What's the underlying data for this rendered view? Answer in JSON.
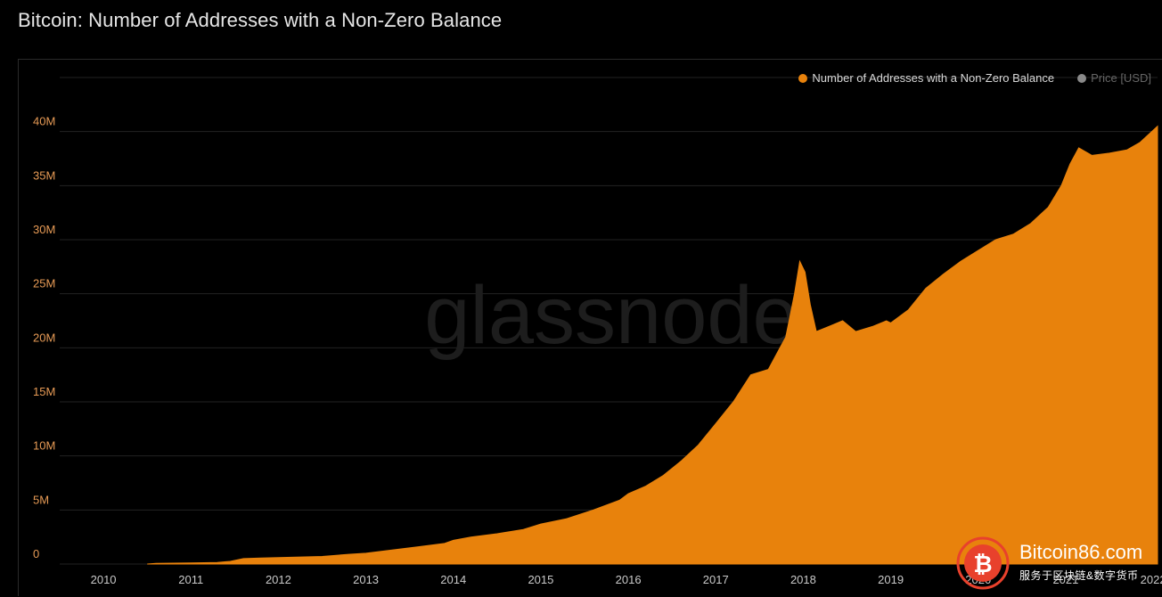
{
  "title": "Bitcoin: Number of Addresses with a Non-Zero Balance",
  "legend": [
    {
      "label": "Number of Addresses with a Non-Zero Balance",
      "color": "#e8820c"
    },
    {
      "label": "Price [USD]",
      "color": "#8a8a8a"
    }
  ],
  "watermark": {
    "text": "glassnode"
  },
  "overlay_logo": {
    "brand": "Bitcoin86.com",
    "subtitle": "服务于区块链&数字货币",
    "icon": "bitcoin-icon"
  },
  "colors": {
    "series": "#e8820c",
    "background": "#000000",
    "grid": "#222222",
    "axis_text": "#c9c9c9",
    "ytick_text": "#e69a55"
  },
  "chart_data": {
    "type": "area",
    "title": "Bitcoin: Number of Addresses with a Non-Zero Balance",
    "xlabel": "",
    "ylabel": "",
    "x_ticks": [
      "2010",
      "2011",
      "2012",
      "2013",
      "2014",
      "2015",
      "2016",
      "2017",
      "2018",
      "2019",
      "2020",
      "2021",
      "2022"
    ],
    "y_ticks": [
      {
        "value": 0,
        "label": "0"
      },
      {
        "value": 5000000,
        "label": "5M"
      },
      {
        "value": 10000000,
        "label": "10M"
      },
      {
        "value": 15000000,
        "label": "15M"
      },
      {
        "value": 20000000,
        "label": "20M"
      },
      {
        "value": 25000000,
        "label": "25M"
      },
      {
        "value": 30000000,
        "label": "30M"
      },
      {
        "value": 35000000,
        "label": "35M"
      },
      {
        "value": 40000000,
        "label": "40M"
      }
    ],
    "xlim": [
      2009.5,
      2022.05
    ],
    "ylim": [
      0,
      45000000
    ],
    "grid": true,
    "legend_position": "top-right",
    "series": [
      {
        "name": "Number of Addresses with a Non-Zero Balance",
        "color": "#e8820c",
        "points": [
          [
            2010.5,
            0
          ],
          [
            2010.6,
            60000
          ],
          [
            2011.0,
            100000
          ],
          [
            2011.3,
            150000
          ],
          [
            2011.45,
            250000
          ],
          [
            2011.6,
            500000
          ],
          [
            2011.8,
            550000
          ],
          [
            2012.0,
            600000
          ],
          [
            2012.5,
            700000
          ],
          [
            2012.8,
            900000
          ],
          [
            2013.0,
            1000000
          ],
          [
            2013.3,
            1300000
          ],
          [
            2013.6,
            1600000
          ],
          [
            2013.9,
            1900000
          ],
          [
            2014.0,
            2200000
          ],
          [
            2014.2,
            2500000
          ],
          [
            2014.5,
            2800000
          ],
          [
            2014.8,
            3200000
          ],
          [
            2015.0,
            3700000
          ],
          [
            2015.3,
            4200000
          ],
          [
            2015.6,
            5000000
          ],
          [
            2015.9,
            5900000
          ],
          [
            2016.0,
            6500000
          ],
          [
            2016.2,
            7200000
          ],
          [
            2016.4,
            8200000
          ],
          [
            2016.6,
            9500000
          ],
          [
            2016.8,
            11000000
          ],
          [
            2017.0,
            13000000
          ],
          [
            2017.2,
            15000000
          ],
          [
            2017.4,
            17500000
          ],
          [
            2017.6,
            18000000
          ],
          [
            2017.7,
            19500000
          ],
          [
            2017.8,
            21000000
          ],
          [
            2017.9,
            25000000
          ],
          [
            2017.96,
            28000000
          ],
          [
            2018.02,
            27000000
          ],
          [
            2018.08,
            24000000
          ],
          [
            2018.15,
            21500000
          ],
          [
            2018.3,
            22000000
          ],
          [
            2018.45,
            22500000
          ],
          [
            2018.6,
            21500000
          ],
          [
            2018.8,
            22000000
          ],
          [
            2018.95,
            22500000
          ],
          [
            2019.0,
            22300000
          ],
          [
            2019.2,
            23500000
          ],
          [
            2019.4,
            25500000
          ],
          [
            2019.6,
            26800000
          ],
          [
            2019.8,
            28000000
          ],
          [
            2020.0,
            29000000
          ],
          [
            2020.2,
            30000000
          ],
          [
            2020.4,
            30500000
          ],
          [
            2020.6,
            31500000
          ],
          [
            2020.8,
            33000000
          ],
          [
            2020.95,
            35000000
          ],
          [
            2021.05,
            37000000
          ],
          [
            2021.15,
            38500000
          ],
          [
            2021.3,
            37800000
          ],
          [
            2021.5,
            38000000
          ],
          [
            2021.7,
            38300000
          ],
          [
            2021.85,
            39000000
          ],
          [
            2022.05,
            40500000
          ]
        ]
      }
    ]
  }
}
